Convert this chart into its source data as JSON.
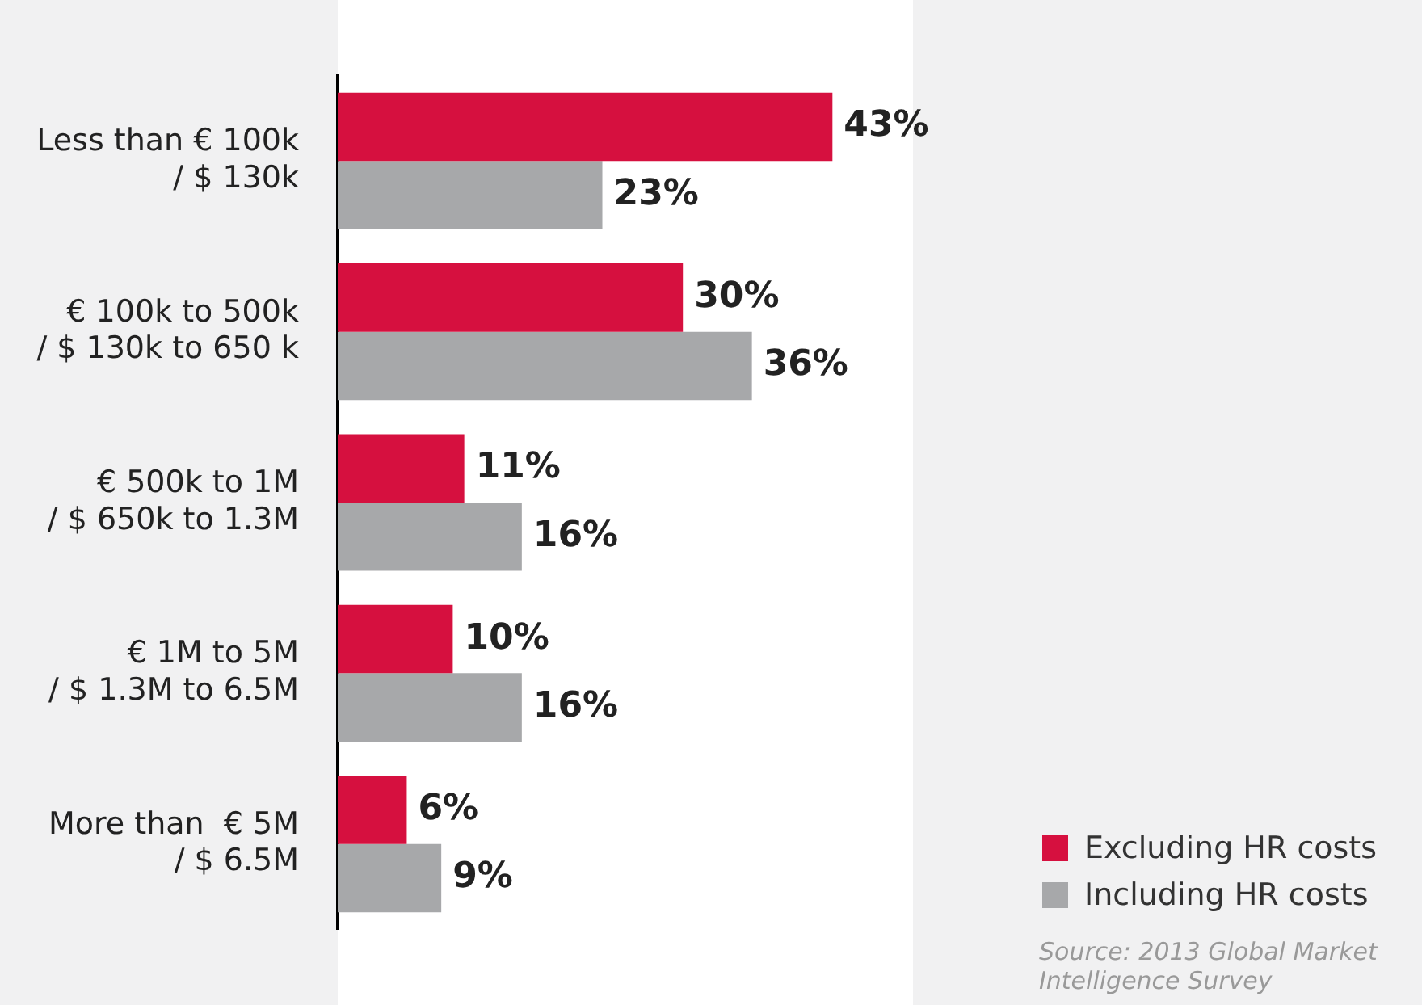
{
  "chart_data": {
    "type": "bar",
    "orientation": "horizontal",
    "categories": [
      "Less than € 100k\n/ $ 130k",
      "€ 100k to 500k\n/ $ 130k to 650 k",
      "€ 500k to 1M\n/ $ 650k to 1.3M",
      "€ 1M to 5M\n/ $ 1.3M to 6.5M",
      "More than  € 5M\n/ $ 6.5M"
    ],
    "series": [
      {
        "name": "Excluding HR costs",
        "color": "#d6103f",
        "values": [
          43,
          30,
          11,
          10,
          6
        ],
        "value_labels": [
          "43%",
          "30%",
          "11%",
          "10%",
          "6%"
        ]
      },
      {
        "name": "Including HR costs",
        "color": "#a7a8aa",
        "values": [
          23,
          36,
          16,
          16,
          9
        ],
        "value_labels": [
          "23%",
          "36%",
          "16%",
          "16%",
          "9%"
        ]
      }
    ],
    "legend": "bottom right",
    "annotations": [
      "Source: 2013 Global Market Intelligence Survey"
    ]
  }
}
